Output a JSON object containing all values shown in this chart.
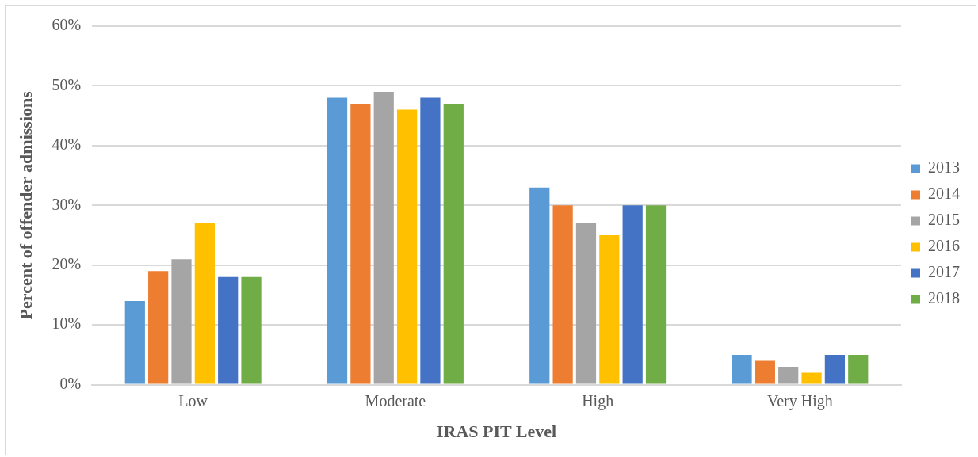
{
  "chart_data": {
    "type": "bar",
    "xlabel": "IRAS PIT Level",
    "ylabel": "Percent of offender admissions",
    "categories": [
      "Low",
      "Moderate",
      "High",
      "Very High"
    ],
    "series": [
      {
        "name": "2013",
        "color": "#5b9bd5",
        "values": [
          14,
          48,
          33,
          5
        ]
      },
      {
        "name": "2014",
        "color": "#ed7d31",
        "values": [
          19,
          47,
          30,
          4
        ]
      },
      {
        "name": "2015",
        "color": "#a5a5a5",
        "values": [
          21,
          49,
          27,
          3
        ]
      },
      {
        "name": "2016",
        "color": "#ffc000",
        "values": [
          27,
          46,
          25,
          2
        ]
      },
      {
        "name": "2017",
        "color": "#4472c4",
        "values": [
          18,
          48,
          30,
          5
        ]
      },
      {
        "name": "2018",
        "color": "#70ad47",
        "values": [
          18,
          47,
          30,
          5
        ]
      }
    ],
    "ylim": [
      0,
      60
    ],
    "yticks": [
      {
        "value": 0,
        "label": "0%"
      },
      {
        "value": 10,
        "label": "10%"
      },
      {
        "value": 20,
        "label": "20%"
      },
      {
        "value": 30,
        "label": "30%"
      },
      {
        "value": 40,
        "label": "40%"
      },
      {
        "value": 50,
        "label": "50%"
      },
      {
        "value": 60,
        "label": "60%"
      }
    ],
    "grid": "y",
    "legend": "right"
  }
}
